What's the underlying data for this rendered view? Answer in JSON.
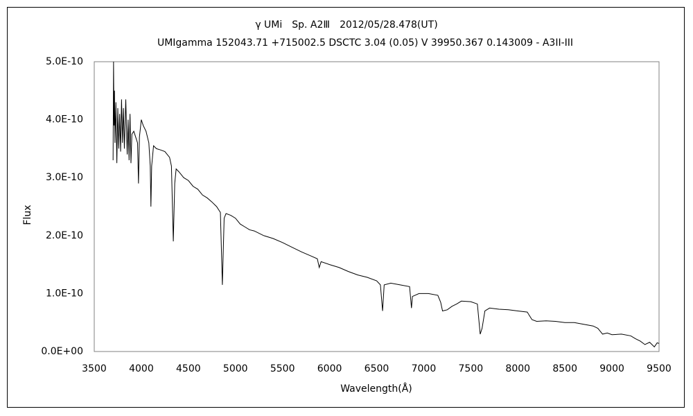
{
  "chart_data": {
    "type": "line",
    "title": "γ UMi　Sp. A2Ⅲ　2012/05/28.478(UT)",
    "subtitle": "UMIgamma 152043.71 +715002.5 DSCTC 3.04 (0.05) V 39950.367 0.143009 - A3II-III",
    "xlabel": "Wavelength(Å)",
    "ylabel": "Flux",
    "color": "#000000",
    "grid": false,
    "xlim": [
      3500,
      9500
    ],
    "xticks": [
      3500,
      4000,
      4500,
      5000,
      5500,
      6000,
      6500,
      7000,
      7500,
      8000,
      8500,
      9000,
      9500
    ],
    "ylim": [
      0,
      5e-10
    ],
    "yticks": [
      {
        "value": 0,
        "label": "0.0E+00"
      },
      {
        "value": 1e-10,
        "label": "1.0E-10"
      },
      {
        "value": 2e-10,
        "label": "2.0E-10"
      },
      {
        "value": 3e-10,
        "label": "3.0E-10"
      },
      {
        "value": 4e-10,
        "label": "4.0E-10"
      },
      {
        "value": 5e-10,
        "label": "5.0E-10"
      }
    ],
    "x": [
      3700,
      3705,
      3710,
      3715,
      3720,
      3730,
      3740,
      3750,
      3760,
      3770,
      3780,
      3790,
      3800,
      3810,
      3820,
      3835,
      3850,
      3860,
      3870,
      3880,
      3890,
      3900,
      3920,
      3940,
      3960,
      3970,
      3980,
      4000,
      4020,
      4050,
      4080,
      4095,
      4102,
      4110,
      4130,
      4160,
      4200,
      4250,
      4300,
      4320,
      4340,
      4355,
      4370,
      4400,
      4450,
      4500,
      4550,
      4600,
      4650,
      4700,
      4750,
      4800,
      4840,
      4861,
      4880,
      4900,
      4950,
      5000,
      5050,
      5100,
      5150,
      5200,
      5300,
      5400,
      5500,
      5600,
      5700,
      5800,
      5870,
      5890,
      5910,
      6000,
      6100,
      6200,
      6300,
      6400,
      6500,
      6540,
      6563,
      6580,
      6650,
      6750,
      6850,
      6870,
      6880,
      6950,
      7050,
      7150,
      7180,
      7200,
      7250,
      7300,
      7350,
      7400,
      7500,
      7570,
      7600,
      7620,
      7650,
      7700,
      7800,
      7900,
      8000,
      8100,
      8150,
      8200,
      8300,
      8400,
      8500,
      8600,
      8700,
      8800,
      8850,
      8900,
      8950,
      9000,
      9100,
      9200,
      9250,
      9300,
      9350,
      9400,
      9450,
      9480,
      9500
    ],
    "values": [
      3.3e-10,
      5e-10,
      3.9e-10,
      4.5e-10,
      3.6e-10,
      4.3e-10,
      3.25e-10,
      4.2e-10,
      3.5e-10,
      4.1e-10,
      3.45e-10,
      4.35e-10,
      3.6e-10,
      4.2e-10,
      3.5e-10,
      4.35e-10,
      3.4e-10,
      4e-10,
      3.3e-10,
      4.1e-10,
      3.25e-10,
      3.75e-10,
      3.8e-10,
      3.7e-10,
      3.6e-10,
      2.9e-10,
      3.7e-10,
      4e-10,
      3.9e-10,
      3.8e-10,
      3.6e-10,
      3.2e-10,
      2.5e-10,
      3.2e-10,
      3.55e-10,
      3.5e-10,
      3.48e-10,
      3.45e-10,
      3.35e-10,
      3.2e-10,
      1.9e-10,
      2.9e-10,
      3.15e-10,
      3.1e-10,
      3e-10,
      2.95e-10,
      2.85e-10,
      2.8e-10,
      2.7e-10,
      2.65e-10,
      2.58e-10,
      2.5e-10,
      2.4e-10,
      1.15e-10,
      2.3e-10,
      2.38e-10,
      2.35e-10,
      2.3e-10,
      2.2e-10,
      2.15e-10,
      2.1e-10,
      2.08e-10,
      2e-10,
      1.95e-10,
      1.88e-10,
      1.8e-10,
      1.72e-10,
      1.65e-10,
      1.6e-10,
      1.45e-10,
      1.55e-10,
      1.5e-10,
      1.45e-10,
      1.38e-10,
      1.32e-10,
      1.28e-10,
      1.22e-10,
      1.15e-10,
      7e-11,
      1.15e-10,
      1.18e-10,
      1.15e-10,
      1.12e-10,
      7.5e-11,
      9.5e-11,
      1e-10,
      1e-10,
      9.7e-11,
      8.5e-11,
      7e-11,
      7.2e-11,
      7.8e-11,
      8.2e-11,
      8.7e-11,
      8.6e-11,
      8.2e-11,
      3e-11,
      4e-11,
      7e-11,
      7.5e-11,
      7.3e-11,
      7.2e-11,
      7e-11,
      6.8e-11,
      5.5e-11,
      5.2e-11,
      5.3e-11,
      5.2e-11,
      5e-11,
      5e-11,
      4.7e-11,
      4.4e-11,
      4e-11,
      3e-11,
      3.2e-11,
      2.9e-11,
      3e-11,
      2.7e-11,
      2.2e-11,
      1.8e-11,
      1.2e-11,
      1.6e-11,
      8e-12,
      1.5e-11,
      1.4e-11
    ]
  }
}
